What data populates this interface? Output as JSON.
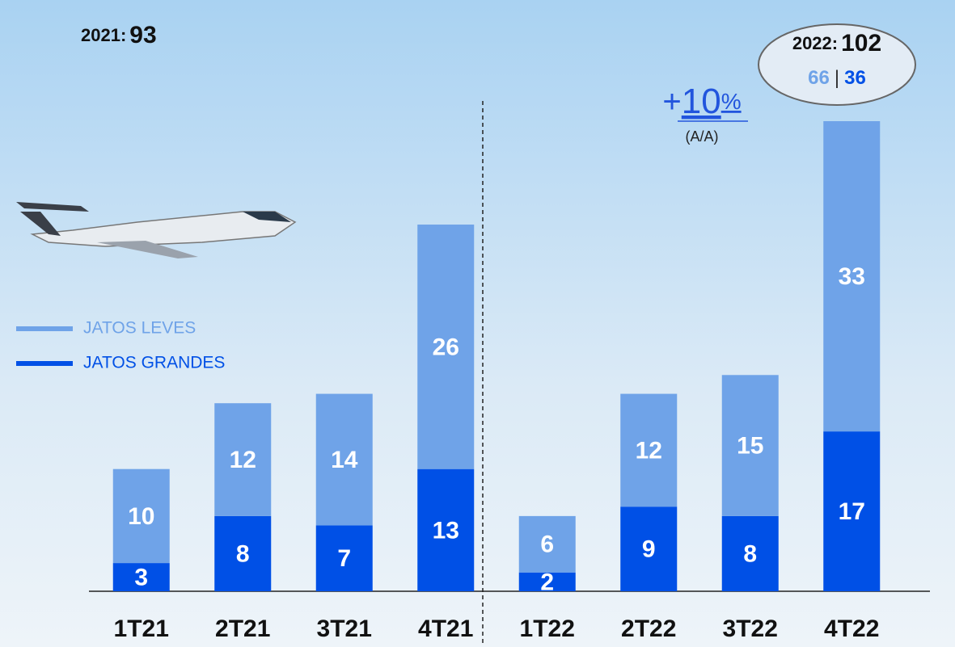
{
  "chart_data": {
    "type": "stacked_bar",
    "categories": [
      "1T21",
      "2T21",
      "3T21",
      "4T21",
      "1T22",
      "2T22",
      "3T22",
      "4T22"
    ],
    "series": [
      {
        "name": "JATOS GRANDES",
        "color": "#0050e6",
        "values": [
          3,
          8,
          7,
          13,
          2,
          9,
          8,
          17
        ]
      },
      {
        "name": "JATOS LEVES",
        "color": "#6fa3e8",
        "values": [
          10,
          12,
          14,
          26,
          6,
          12,
          15,
          33
        ]
      }
    ],
    "totals": [
      {
        "label": "2021:",
        "value": 93
      },
      {
        "label": "2022:",
        "value": 102,
        "breakdown": [
          66,
          36
        ],
        "separator": "|"
      }
    ],
    "change": {
      "prefix": "+",
      "value": 10,
      "unit": "%",
      "basis": "(A/A)"
    }
  }
}
